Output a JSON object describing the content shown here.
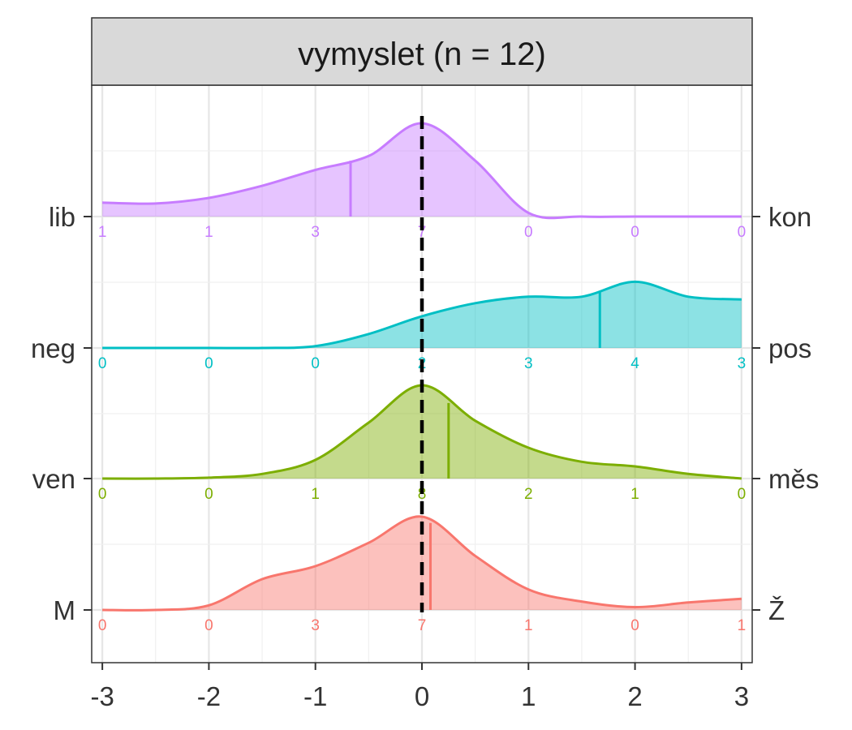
{
  "chart_data": {
    "type": "area",
    "title": "vymyslet (n = 12)",
    "xlabel": "",
    "ylabel": "",
    "xlim": [
      -3.1,
      3.1
    ],
    "x_ticks": [
      -3,
      -2,
      -1,
      0,
      1,
      2,
      3
    ],
    "x_tick_labels": [
      "-3",
      "-2",
      "-1",
      "0",
      "1",
      "2",
      "3"
    ],
    "reference_line_x": 0,
    "grid": true,
    "count_positions": [
      -3,
      -2,
      -1,
      0,
      1,
      2,
      3
    ],
    "density_x": [
      -3.0,
      -2.5,
      -2.0,
      -1.5,
      -1.0,
      -0.5,
      0.0,
      0.5,
      1.0,
      1.5,
      2.0,
      2.5,
      3.0
    ],
    "series": [
      {
        "left_label": "lib",
        "right_label": "kon",
        "color": "#C77CFF",
        "mean": -0.67,
        "counts": [
          "1",
          "1",
          "3",
          "7",
          "0",
          "0",
          "0"
        ],
        "density": [
          0.15,
          0.14,
          0.2,
          0.33,
          0.5,
          0.65,
          1.0,
          0.6,
          0.04,
          0.0,
          0.0,
          0.0,
          0.0
        ]
      },
      {
        "left_label": "neg",
        "right_label": "pos",
        "color": "#00BFC4",
        "mean": 1.67,
        "counts": [
          "0",
          "0",
          "0",
          "2",
          "3",
          "4",
          "3"
        ],
        "density": [
          0.0,
          0.0,
          0.0,
          0.0,
          0.02,
          0.15,
          0.34,
          0.48,
          0.55,
          0.55,
          0.71,
          0.55,
          0.52
        ]
      },
      {
        "left_label": "ven",
        "right_label": "měs",
        "color": "#7CAE00",
        "mean": 0.25,
        "counts": [
          "0",
          "0",
          "1",
          "8",
          "2",
          "1",
          "0"
        ],
        "density": [
          0.0,
          0.0,
          0.01,
          0.05,
          0.2,
          0.6,
          1.0,
          0.62,
          0.33,
          0.18,
          0.13,
          0.05,
          0.0
        ]
      },
      {
        "left_label": "M",
        "right_label": "Ž",
        "color": "#F8766D",
        "mean": 0.08,
        "counts": [
          "0",
          "0",
          "3",
          "7",
          "1",
          "0",
          "1"
        ],
        "density": [
          0.0,
          0.0,
          0.05,
          0.33,
          0.47,
          0.72,
          1.0,
          0.58,
          0.22,
          0.09,
          0.03,
          0.08,
          0.12
        ]
      }
    ]
  }
}
